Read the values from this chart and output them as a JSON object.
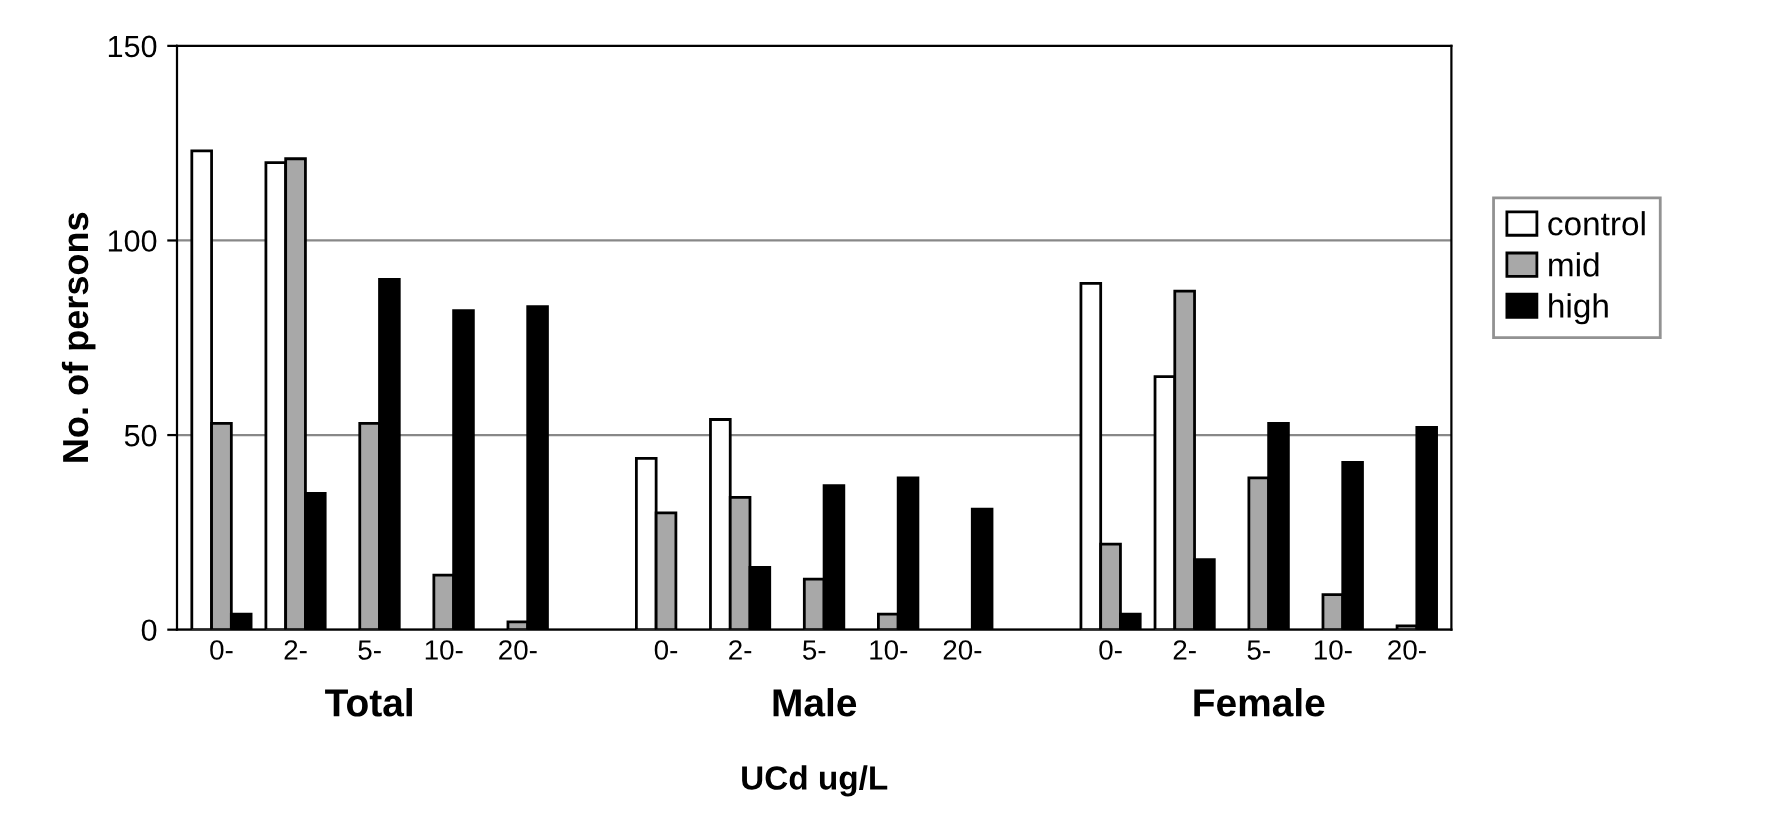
{
  "chart_data": {
    "type": "bar",
    "xlabel": "UCd ug/L",
    "ylabel": "No. of persons",
    "categories": [
      "0-",
      "2-",
      "5-",
      "10-",
      "20-",
      null,
      "0-",
      "2-",
      "5-",
      "10-",
      "20-",
      null,
      "0-",
      "2-",
      "5-",
      "10-",
      "20-"
    ],
    "series": [
      {
        "name": "control",
        "color": "#ffffff",
        "values": [
          123,
          120,
          null,
          null,
          null,
          null,
          44,
          54,
          null,
          null,
          null,
          null,
          89,
          65,
          null,
          null,
          null
        ]
      },
      {
        "name": "mid",
        "color": "#a8a8a8",
        "values": [
          53,
          121,
          53,
          14,
          2,
          null,
          30,
          34,
          13,
          4,
          null,
          null,
          22,
          87,
          39,
          9,
          1
        ]
      },
      {
        "name": "high",
        "color": "#000000",
        "values": [
          4,
          35,
          90,
          82,
          83,
          null,
          null,
          16,
          37,
          39,
          31,
          null,
          4,
          18,
          53,
          43,
          52
        ]
      }
    ],
    "annotations": [
      "Total",
      "Male",
      "Female"
    ],
    "ylim": [
      0,
      150
    ],
    "yticks": [
      0,
      50,
      100,
      150
    ],
    "grid": "y",
    "legend": "right"
  }
}
